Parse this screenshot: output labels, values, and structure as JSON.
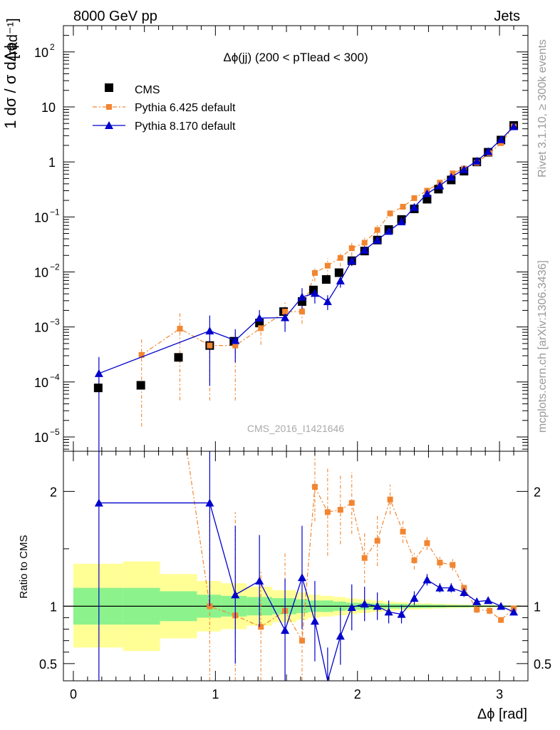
{
  "header": {
    "left": "8000 GeV pp",
    "right": "Jets"
  },
  "side_text": {
    "rivet": "Rivet 3.1.10, ≥ 300k events",
    "mcplots": "mcplots.cern.ch [arXiv:1306.3436]"
  },
  "watermark": "CMS_2016_I1421646",
  "colors": {
    "cms": "#000000",
    "pythia6": "#f28530",
    "pythia8": "#0000cc",
    "band_inner": "#8cf28c",
    "band_outer": "#ffff96"
  },
  "chart_data": [
    {
      "type": "scatter",
      "title": "Δϕ(jj) (200 < pTlead <  300)",
      "ylabel_main": "1 dσ / σ dΔϕ",
      "ylabel_unit": "[rad⁻¹]",
      "yscale": "log",
      "ylim": [
        5.5e-06,
        300
      ],
      "xlim": [
        -0.07,
        3.2
      ],
      "y_ticks": [
        {
          "v": 1e-05,
          "base": "10",
          "exp": "−5"
        },
        {
          "v": 0.0001,
          "base": "10",
          "exp": "−4"
        },
        {
          "v": 0.001,
          "base": "10",
          "exp": "−3"
        },
        {
          "v": 0.01,
          "base": "10",
          "exp": "−2"
        },
        {
          "v": 0.1,
          "base": "10",
          "exp": "−1"
        },
        {
          "v": 1,
          "base": "1",
          "exp": ""
        },
        {
          "v": 10,
          "base": "10",
          "exp": ""
        },
        {
          "v": 100,
          "base": "10",
          "exp": "2"
        }
      ],
      "legend": [
        "CMS",
        "Pythia 6.425 default",
        "Pythia 8.170 default"
      ],
      "series": [
        {
          "name": "CMS",
          "x": [
            0.175,
            0.475,
            0.74,
            0.96,
            1.13,
            1.31,
            1.48,
            1.61,
            1.69,
            1.78,
            1.87,
            1.96,
            2.05,
            2.14,
            2.22,
            2.31,
            2.4,
            2.49,
            2.57,
            2.66,
            2.75,
            2.84,
            2.92,
            3.01,
            3.1
          ],
          "y": [
            7.8e-05,
            8.7e-05,
            0.00028,
            0.00046,
            0.00055,
            0.00118,
            0.0019,
            0.0029,
            0.0047,
            0.0073,
            0.0097,
            0.016,
            0.024,
            0.038,
            0.059,
            0.09,
            0.14,
            0.21,
            0.32,
            0.47,
            0.68,
            1.0,
            1.5,
            2.5,
            4.6
          ]
        },
        {
          "name": "Pythia 6.425 default",
          "x": [
            0.48,
            0.75,
            0.96,
            1.14,
            1.32,
            1.49,
            1.61,
            1.7,
            1.79,
            1.88,
            1.96,
            2.05,
            2.14,
            2.23,
            2.32,
            2.4,
            2.49,
            2.58,
            2.67,
            2.75,
            2.84,
            2.93,
            3.01,
            3.1
          ],
          "y": [
            0.00031,
            0.00093,
            0.00046,
            0.00046,
            0.00095,
            0.0019,
            0.0019,
            0.0096,
            0.013,
            0.018,
            0.027,
            0.034,
            0.058,
            0.116,
            0.153,
            0.22,
            0.3,
            0.42,
            0.62,
            0.76,
            0.97,
            1.45,
            2.2,
            4.4
          ]
        },
        {
          "name": "Pythia 8.170 default",
          "x": [
            0.18,
            0.96,
            1.14,
            1.31,
            1.49,
            1.61,
            1.7,
            1.79,
            1.88,
            1.96,
            2.05,
            2.14,
            2.22,
            2.31,
            2.4,
            2.49,
            2.58,
            2.66,
            2.75,
            2.84,
            2.92,
            3.01,
            3.1
          ],
          "y": [
            0.000143,
            0.00085,
            0.00057,
            0.00145,
            0.00148,
            0.0035,
            0.0041,
            0.0029,
            0.0069,
            0.016,
            0.025,
            0.038,
            0.055,
            0.082,
            0.15,
            0.265,
            0.37,
            0.53,
            0.73,
            1.04,
            1.55,
            2.55,
            4.4
          ]
        }
      ]
    },
    {
      "type": "scatter",
      "ylabel": "Ratio to CMS",
      "xlabel": "Δϕ [rad]",
      "ylim": [
        0.35,
        2.35
      ],
      "xlim": [
        -0.07,
        3.2
      ],
      "x_ticks": [
        "0",
        "1",
        "2",
        "3"
      ],
      "y_ticks": [
        "0.5",
        "1",
        "2"
      ],
      "band_inner": {
        "edges": [
          0,
          0.35,
          0.61,
          0.87,
          1.04,
          1.22,
          1.4,
          1.57,
          1.65,
          1.74,
          1.83,
          1.92,
          2.0,
          2.09,
          2.18,
          2.27,
          2.35,
          2.44,
          2.53,
          2.62,
          2.71,
          2.79,
          2.88,
          2.97,
          3.05,
          3.15
        ],
        "lo": [
          0.84,
          0.84,
          0.87,
          0.9,
          0.91,
          0.92,
          0.93,
          0.94,
          0.95,
          0.95,
          0.96,
          0.97,
          0.97,
          0.975,
          0.98,
          0.98,
          0.985,
          0.985,
          0.987,
          0.99,
          0.99,
          0.992,
          0.993,
          0.994,
          0.995
        ],
        "hi": [
          1.16,
          1.16,
          1.13,
          1.1,
          1.09,
          1.08,
          1.07,
          1.06,
          1.05,
          1.05,
          1.04,
          1.03,
          1.03,
          1.025,
          1.02,
          1.02,
          1.015,
          1.015,
          1.013,
          1.01,
          1.01,
          1.008,
          1.007,
          1.006,
          1.005
        ]
      },
      "band_outer": {
        "edges": [
          0,
          0.35,
          0.61,
          0.87,
          1.04,
          1.22,
          1.4,
          1.57,
          1.65,
          1.74,
          1.83,
          1.92,
          2.0,
          2.09,
          2.18,
          2.27,
          2.35,
          2.44,
          2.53,
          2.62,
          2.71,
          2.79,
          2.88,
          2.97,
          3.05,
          3.15
        ],
        "lo": [
          0.64,
          0.61,
          0.72,
          0.78,
          0.8,
          0.83,
          0.86,
          0.88,
          0.9,
          0.91,
          0.92,
          0.93,
          0.94,
          0.95,
          0.96,
          0.965,
          0.97,
          0.975,
          0.98,
          0.982,
          0.985,
          0.987,
          0.99,
          0.992,
          0.993
        ],
        "hi": [
          1.37,
          1.39,
          1.28,
          1.22,
          1.2,
          1.17,
          1.14,
          1.12,
          1.1,
          1.09,
          1.08,
          1.07,
          1.06,
          1.05,
          1.04,
          1.035,
          1.03,
          1.025,
          1.02,
          1.018,
          1.015,
          1.013,
          1.01,
          1.008,
          1.007
        ]
      },
      "series": [
        {
          "name": "Pythia 6.425 default",
          "x": [
            0.96,
            1.14,
            1.32,
            1.49,
            1.61,
            1.7,
            1.79,
            1.88,
            1.96,
            2.05,
            2.14,
            2.23,
            2.32,
            2.4,
            2.49,
            2.58,
            2.67,
            2.75,
            2.84,
            2.93,
            3.01,
            3.1
          ],
          "y": [
            1.0,
            0.92,
            0.82,
            0.96,
            0.7,
            2.04,
            1.82,
            1.84,
            1.9,
            1.42,
            1.57,
            1.93,
            1.65,
            1.4,
            1.55,
            1.38,
            1.36,
            1.16,
            0.97,
            0.96,
            0.88,
            0.98
          ],
          "err": [
            0.9,
            0.9,
            0.5,
            0.5,
            0.4,
            0.3,
            0.38,
            0.3,
            0.27,
            0.22,
            0.22,
            0.13,
            0.1,
            0.08,
            0.06,
            0.05,
            0.05,
            0.04,
            0.03,
            0.03,
            0.02,
            0.02
          ]
        },
        {
          "name": "Pythia 8.170 default",
          "x": [
            0.18,
            0.96,
            1.14,
            1.31,
            1.49,
            1.61,
            1.7,
            1.79,
            1.88,
            1.96,
            2.05,
            2.14,
            2.22,
            2.31,
            2.4,
            2.49,
            2.58,
            2.66,
            2.75,
            2.84,
            2.92,
            3.01,
            3.1
          ],
          "y": [
            1.9,
            1.9,
            1.1,
            1.22,
            0.79,
            1.25,
            0.87,
            0.34,
            0.74,
            0.99,
            1.02,
            1.0,
            0.95,
            0.93,
            1.07,
            1.23,
            1.16,
            1.16,
            1.12,
            1.04,
            1.05,
            1.0,
            0.95
          ],
          "err": [
            1.6,
            0.9,
            0.6,
            0.4,
            0.45,
            0.45,
            0.35,
            0.3,
            0.25,
            0.2,
            0.15,
            0.12,
            0.1,
            0.08,
            0.06,
            0.05,
            0.04,
            0.04,
            0.04,
            0.03,
            0.03,
            0.02,
            0.02
          ]
        }
      ]
    }
  ]
}
